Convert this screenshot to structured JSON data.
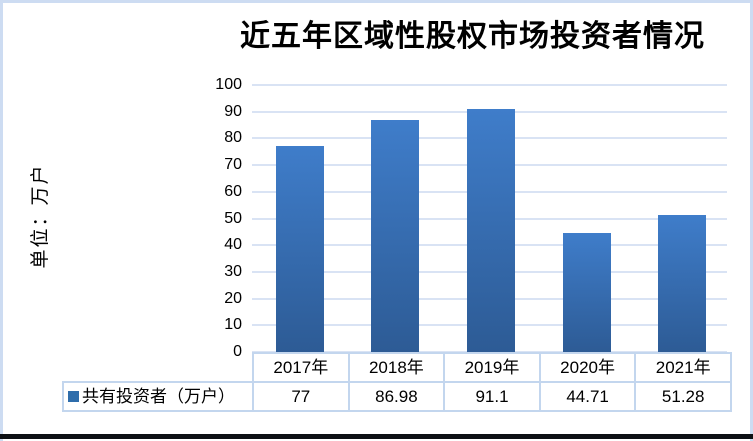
{
  "window": {
    "frame_border_color": "#cddcf2",
    "bottom_bar_color": "#0d1014"
  },
  "chart": {
    "title": "近五年区域性股权市场投资者情况",
    "unit_label": "单位：万户",
    "legend_label": "共有投资者（万户）",
    "colors": {
      "bar_top": "#3f7dca",
      "bar_bottom": "#2d5b95",
      "gridline": "#d9e3f4",
      "table_border": "#c3d6ee",
      "legend_marker": "#2e6dab",
      "text": "#000000"
    }
  },
  "chart_data": {
    "type": "bar",
    "title": "近五年区域性股权市场投资者情况",
    "categories": [
      "2017年",
      "2018年",
      "2019年",
      "2020年",
      "2021年"
    ],
    "series": [
      {
        "name": "共有投资者（万户）",
        "values": [
          77,
          86.98,
          91.1,
          44.71,
          51.28
        ]
      }
    ],
    "value_labels": [
      "77",
      "86.98",
      "91.1",
      "44.71",
      "51.28"
    ],
    "xlabel": "",
    "ylabel": "单位：万户",
    "ylim": [
      0,
      100
    ],
    "yticks": [
      0,
      10,
      20,
      30,
      40,
      50,
      60,
      70,
      80,
      90,
      100
    ],
    "grid": true,
    "legend_position": "data-table-bottom-left"
  }
}
